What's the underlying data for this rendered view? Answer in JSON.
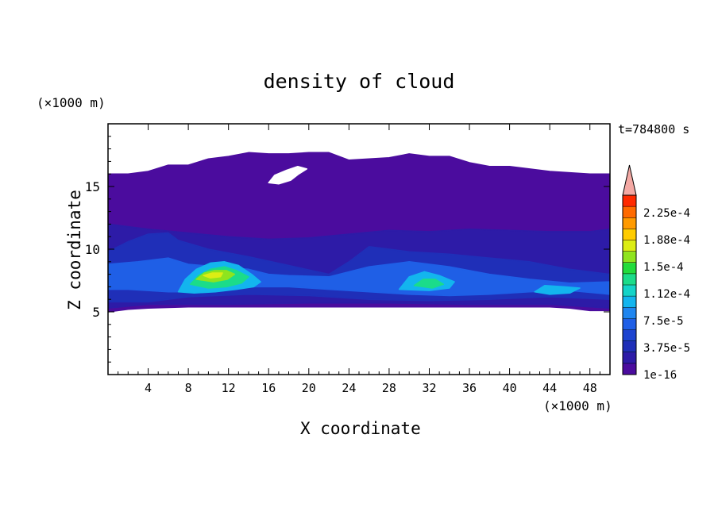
{
  "chart_data": {
    "type": "heatmap",
    "title": "density of cloud",
    "xlabel": "X coordinate",
    "ylabel": "Z coordinate",
    "x_unit": "(×1000 m)",
    "y_unit": "(×1000 m)",
    "time_label": "t=784800 s",
    "xlim": [
      0,
      50
    ],
    "ylim": [
      0,
      20
    ],
    "x_ticks": [
      4,
      8,
      12,
      16,
      20,
      24,
      28,
      32,
      36,
      40,
      44,
      48
    ],
    "y_ticks": [
      5,
      10,
      15
    ],
    "colorbar": {
      "min": 1e-16,
      "max": 0.000225,
      "labels": [
        "2.25e-4",
        "1.88e-4",
        "1.5e-4",
        "1.12e-4",
        "7.5e-5",
        "3.75e-5",
        "1e-16"
      ],
      "levels": [
        {
          "color": "#4b0c9e"
        },
        {
          "color": "#2d1ba7"
        },
        {
          "color": "#1f2fb8"
        },
        {
          "color": "#1d44d0"
        },
        {
          "color": "#1f5fe6"
        },
        {
          "color": "#1f86f0"
        },
        {
          "color": "#13b5ee"
        },
        {
          "color": "#14d4c8"
        },
        {
          "color": "#1bdc8a"
        },
        {
          "color": "#22dc3c"
        },
        {
          "color": "#8fe41e"
        },
        {
          "color": "#dced14"
        },
        {
          "color": "#ffcc00"
        },
        {
          "color": "#ff9a00"
        },
        {
          "color": "#ff6a00"
        },
        {
          "color": "#ff2a00"
        }
      ],
      "over_color": "#f4a9a4"
    },
    "regions": [
      {
        "name": "upper cloud layer",
        "level": 0,
        "outline": [
          [
            0,
            16.0
          ],
          [
            2,
            16.0
          ],
          [
            4,
            16.2
          ],
          [
            6,
            16.7
          ],
          [
            8,
            16.7
          ],
          [
            10,
            17.2
          ],
          [
            12,
            17.4
          ],
          [
            14,
            17.7
          ],
          [
            16,
            17.6
          ],
          [
            18,
            17.6
          ],
          [
            20,
            17.7
          ],
          [
            22,
            17.7
          ],
          [
            24,
            17.1
          ],
          [
            26,
            17.2
          ],
          [
            28,
            17.3
          ],
          [
            30,
            17.6
          ],
          [
            32,
            17.4
          ],
          [
            34,
            17.4
          ],
          [
            36,
            16.9
          ],
          [
            38,
            16.6
          ],
          [
            40,
            16.6
          ],
          [
            42,
            16.4
          ],
          [
            44,
            16.2
          ],
          [
            46,
            16.1
          ],
          [
            48,
            16.0
          ],
          [
            50,
            16.0
          ],
          [
            50,
            5.1
          ],
          [
            48,
            5.1
          ],
          [
            46,
            5.3
          ],
          [
            44,
            5.4
          ],
          [
            40,
            5.4
          ],
          [
            36,
            5.4
          ],
          [
            32,
            5.4
          ],
          [
            28,
            5.4
          ],
          [
            24,
            5.4
          ],
          [
            20,
            5.4
          ],
          [
            16,
            5.4
          ],
          [
            12,
            5.4
          ],
          [
            8,
            5.4
          ],
          [
            4,
            5.3
          ],
          [
            2,
            5.2
          ],
          [
            0,
            5.0
          ]
        ]
      },
      {
        "name": "clear gap",
        "level": -1,
        "outline": [
          [
            16.0,
            15.3
          ],
          [
            16.6,
            15.9
          ],
          [
            17.8,
            16.3
          ],
          [
            18.9,
            16.6
          ],
          [
            19.8,
            16.4
          ],
          [
            19.0,
            16.0
          ],
          [
            18.2,
            15.5
          ],
          [
            17.0,
            15.2
          ]
        ]
      },
      {
        "name": "mid layer",
        "level": 1,
        "outline": [
          [
            0,
            12.0
          ],
          [
            4,
            11.6
          ],
          [
            8,
            11.3
          ],
          [
            12,
            11.0
          ],
          [
            16,
            10.8
          ],
          [
            20,
            10.9
          ],
          [
            24,
            11.2
          ],
          [
            28,
            11.5
          ],
          [
            32,
            11.4
          ],
          [
            36,
            11.6
          ],
          [
            40,
            11.5
          ],
          [
            44,
            11.4
          ],
          [
            48,
            11.4
          ],
          [
            50,
            11.6
          ],
          [
            50,
            5.3
          ],
          [
            44,
            5.6
          ],
          [
            36,
            5.6
          ],
          [
            28,
            5.7
          ],
          [
            20,
            5.7
          ],
          [
            12,
            5.6
          ],
          [
            4,
            5.6
          ],
          [
            0,
            5.3
          ]
        ]
      },
      {
        "name": "left wing",
        "level": 2,
        "outline": [
          [
            0,
            9.8
          ],
          [
            2,
            10.6
          ],
          [
            4,
            11.2
          ],
          [
            6,
            11.3
          ],
          [
            7,
            10.7
          ],
          [
            10,
            10.0
          ],
          [
            14,
            9.4
          ],
          [
            18,
            8.7
          ],
          [
            22,
            8.0
          ],
          [
            24,
            9.0
          ],
          [
            26,
            10.2
          ],
          [
            30,
            9.8
          ],
          [
            34,
            9.6
          ],
          [
            38,
            9.3
          ],
          [
            42,
            9.0
          ],
          [
            46,
            8.4
          ],
          [
            50,
            8.0
          ],
          [
            50,
            6.0
          ],
          [
            44,
            6.2
          ],
          [
            38,
            6.0
          ],
          [
            32,
            5.9
          ],
          [
            26,
            6.0
          ],
          [
            20,
            6.3
          ],
          [
            14,
            6.4
          ],
          [
            8,
            6.2
          ],
          [
            4,
            5.8
          ],
          [
            0,
            5.8
          ]
        ]
      },
      {
        "name": "mid body",
        "level": 4,
        "outline": [
          [
            0,
            8.8
          ],
          [
            3,
            9.0
          ],
          [
            6,
            9.3
          ],
          [
            8,
            8.8
          ],
          [
            11,
            8.6
          ],
          [
            14,
            8.4
          ],
          [
            16,
            8.0
          ],
          [
            18,
            7.9
          ],
          [
            22,
            7.8
          ],
          [
            26,
            8.6
          ],
          [
            30,
            9.0
          ],
          [
            34,
            8.6
          ],
          [
            38,
            8.0
          ],
          [
            42,
            7.6
          ],
          [
            46,
            7.3
          ],
          [
            50,
            7.4
          ],
          [
            50,
            6.4
          ],
          [
            46,
            6.7
          ],
          [
            42,
            6.6
          ],
          [
            38,
            6.4
          ],
          [
            34,
            6.3
          ],
          [
            30,
            6.4
          ],
          [
            26,
            6.6
          ],
          [
            22,
            6.8
          ],
          [
            18,
            7.0
          ],
          [
            14,
            7.0
          ],
          [
            10,
            6.6
          ],
          [
            6,
            6.6
          ],
          [
            2,
            6.8
          ],
          [
            0,
            6.8
          ]
        ]
      },
      {
        "name": "left cell 1",
        "level": 6,
        "outline": [
          [
            7.0,
            6.6
          ],
          [
            7.7,
            7.6
          ],
          [
            8.8,
            8.4
          ],
          [
            10.2,
            8.9
          ],
          [
            11.6,
            9.0
          ],
          [
            13.0,
            8.7
          ],
          [
            14.3,
            8.0
          ],
          [
            15.2,
            7.4
          ],
          [
            14.5,
            7.0
          ],
          [
            12.8,
            6.8
          ],
          [
            10.7,
            6.6
          ],
          [
            8.6,
            6.5
          ]
        ]
      },
      {
        "name": "left cell 2",
        "level": 8,
        "outline": [
          [
            8.2,
            7.2
          ],
          [
            9.0,
            7.9
          ],
          [
            10.2,
            8.4
          ],
          [
            11.6,
            8.6
          ],
          [
            12.8,
            8.3
          ],
          [
            14.0,
            7.8
          ],
          [
            13.3,
            7.3
          ],
          [
            11.8,
            7.0
          ],
          [
            10.0,
            6.9
          ]
        ]
      },
      {
        "name": "left cell 3",
        "level": 10,
        "outline": [
          [
            8.8,
            7.6
          ],
          [
            9.6,
            8.1
          ],
          [
            10.6,
            8.3
          ],
          [
            11.8,
            8.3
          ],
          [
            12.6,
            8.0
          ],
          [
            11.9,
            7.6
          ],
          [
            10.5,
            7.4
          ]
        ]
      },
      {
        "name": "left core",
        "level": 11,
        "outline": [
          [
            9.5,
            7.9
          ],
          [
            10.4,
            8.1
          ],
          [
            11.4,
            8.1
          ],
          [
            11.2,
            7.8
          ],
          [
            10.2,
            7.7
          ]
        ]
      },
      {
        "name": "right cell 1",
        "level": 6,
        "outline": [
          [
            29.0,
            6.8
          ],
          [
            30.0,
            7.8
          ],
          [
            31.5,
            8.2
          ],
          [
            33.0,
            7.9
          ],
          [
            34.5,
            7.4
          ],
          [
            34.0,
            6.9
          ],
          [
            32.0,
            6.7
          ]
        ]
      },
      {
        "name": "right cell 2",
        "level": 8,
        "outline": [
          [
            30.5,
            7.1
          ],
          [
            31.4,
            7.6
          ],
          [
            32.6,
            7.6
          ],
          [
            33.4,
            7.2
          ],
          [
            32.3,
            6.9
          ]
        ]
      },
      {
        "name": "far right cell",
        "level": 6,
        "outline": [
          [
            42.5,
            6.6
          ],
          [
            43.5,
            7.1
          ],
          [
            45.5,
            7.0
          ],
          [
            47.0,
            6.9
          ],
          [
            46.0,
            6.5
          ],
          [
            44.0,
            6.4
          ]
        ]
      }
    ]
  }
}
